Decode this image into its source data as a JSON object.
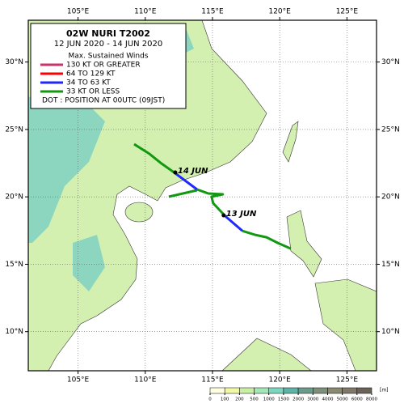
{
  "map": {
    "title": "02W  NURI  T2002",
    "period": "12 JUN 2020 - 14 JUN 2020",
    "legend": {
      "title": "Max. Sustained Winds",
      "entries": [
        {
          "label": "130 KT OR GREATER",
          "color": "#c8326e"
        },
        {
          "label": "64 TO 129 KT",
          "color": "#ff0000"
        },
        {
          "label": "34 TO 63 KT",
          "color": "#1e28ff"
        },
        {
          "label": "33 KT OR LESS",
          "color": "#119911"
        }
      ],
      "note": "DOT : POSITION AT 00UTC (09JST)"
    },
    "lonlim": [
      101.3,
      127.2
    ],
    "latlim": [
      7.1,
      33.1
    ],
    "lonticks": [
      {
        "value": 105,
        "label": "105°E"
      },
      {
        "value": 110,
        "label": "110°E"
      },
      {
        "value": 115,
        "label": "115°E"
      },
      {
        "value": 120,
        "label": "120°E"
      },
      {
        "value": 125,
        "label": "125°E"
      }
    ],
    "latticks": [
      {
        "value": 10,
        "label": "10°N"
      },
      {
        "value": 15,
        "label": "15°N"
      },
      {
        "value": 20,
        "label": "20°N"
      },
      {
        "value": 25,
        "label": "25°N"
      },
      {
        "value": 30,
        "label": "30°N"
      }
    ],
    "track": [
      {
        "color": "#119911",
        "lon": [
          120.82,
          119.86,
          119.02,
          118.18,
          117.22
        ],
        "lat": [
          16.16,
          16.58,
          17.0,
          17.18,
          17.48
        ]
      },
      {
        "color": "#1e28ff",
        "lon": [
          117.22,
          115.95
        ],
        "lat": [
          17.48,
          18.57
        ]
      },
      {
        "color": "#119911",
        "lon": [
          115.95,
          115.05,
          114.93,
          115.77,
          114.69,
          113.85
        ],
        "lat": [
          18.57,
          19.53,
          20.01,
          20.19,
          20.25,
          20.55
        ]
      },
      {
        "color": "#119911",
        "lon": [
          113.85,
          111.75
        ],
        "lat": [
          20.49,
          20.01
        ]
      },
      {
        "color": "#1e28ff",
        "lon": [
          113.85,
          112.23
        ],
        "lat": [
          20.55,
          21.75
        ]
      },
      {
        "color": "#119911",
        "lon": [
          112.23,
          111.21,
          110.31,
          109.17
        ],
        "lat": [
          21.75,
          22.47,
          23.19,
          23.91
        ]
      }
    ],
    "positions": [
      {
        "label": "13 JUN",
        "lon": 115.83,
        "lat": 18.63
      },
      {
        "label": "14 JUN",
        "lon": 112.23,
        "lat": 21.81
      }
    ],
    "colorbar": {
      "ticks": [
        0,
        100,
        200,
        500,
        1000,
        1500,
        2000,
        3000,
        4000,
        5000,
        6000,
        8000
      ],
      "colors": [
        "#ffffe0",
        "#f0f8a0",
        "#c8f0a0",
        "#a0e8b4",
        "#78d8c0",
        "#5ab4a8",
        "#6a9c8c",
        "#7c907a",
        "#8a8a70",
        "#807868",
        "#6a6458"
      ],
      "unit": "[m]"
    }
  }
}
